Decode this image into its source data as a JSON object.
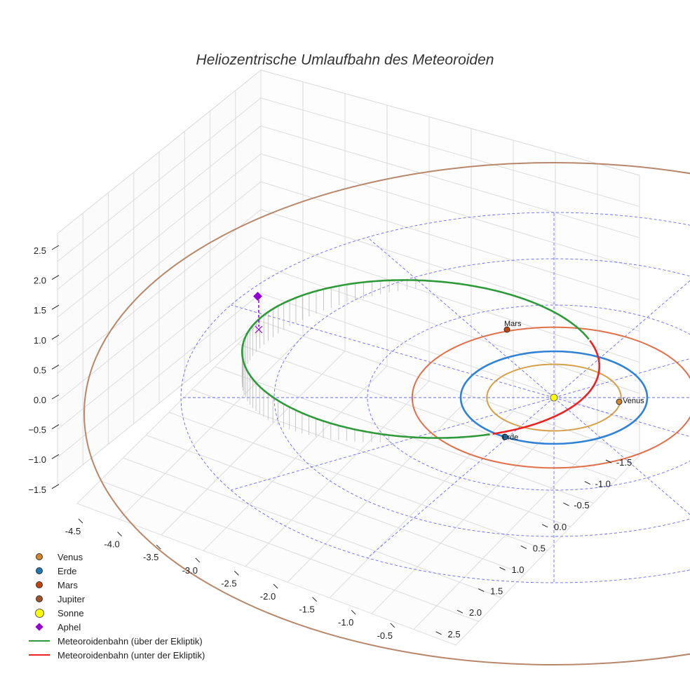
{
  "chart_data": {
    "type": "3d-line",
    "title": "Heliozentrische Umlaufbahn des Meteoroiden",
    "axes": {
      "x": {
        "ticks": [
          "-4.5",
          "-4.0",
          "-3.5",
          "-3.0",
          "-2.5",
          "-2.0",
          "-1.5",
          "-1.0",
          "-0.5"
        ]
      },
      "y": {
        "ticks": [
          "-1.5",
          "-1.0",
          "-0.5",
          "0.0",
          "0.5",
          "1.0",
          "1.5",
          "2.0",
          "2.5"
        ]
      },
      "z": {
        "ticks": [
          "2.5",
          "2.0",
          "1.5",
          "1.0",
          "0.5",
          "0.0",
          "−0.5",
          "−1.0",
          "−1.5"
        ]
      }
    },
    "bodies": [
      {
        "name": "Venus",
        "label": "Venus",
        "color": "#d4842a",
        "orbit_color": "#d4a04a",
        "orbit_radius_au": 0.72
      },
      {
        "name": "Erde",
        "label": "Erde",
        "color": "#1f77b4",
        "orbit_color": "#2f82d6",
        "orbit_radius_au": 1.0
      },
      {
        "name": "Mars",
        "label": "Mars",
        "color": "#c1440e",
        "orbit_color": "#e0704a",
        "orbit_radius_au": 1.52
      },
      {
        "name": "Jupiter",
        "label": "",
        "color": "#a0522d",
        "orbit_color": "#b8876a",
        "orbit_radius_au": 5.2
      },
      {
        "name": "Sonne",
        "label": "",
        "color": "#ffff00"
      }
    ],
    "markers": [
      {
        "name": "Aphel",
        "color": "#9400d3",
        "shape": "diamond"
      }
    ],
    "series": [
      {
        "name": "Meteoroidenbahn (über der Ekliptik)",
        "color": "#2e9a3a"
      },
      {
        "name": "Meteoroidenbahn (unter der Ekliptik)",
        "color": "#ee2222"
      }
    ],
    "ecliptic_grid_color": "#4444ee",
    "legend_position": "bottom-left"
  },
  "title": "Heliozentrische Umlaufbahn des Meteoroiden",
  "legend": [
    {
      "label": "Venus",
      "kind": "dot",
      "color": "#d4842a"
    },
    {
      "label": "Erde",
      "kind": "dot",
      "color": "#1f77b4"
    },
    {
      "label": "Mars",
      "kind": "dot",
      "color": "#c1440e"
    },
    {
      "label": "Jupiter",
      "kind": "dot",
      "color": "#a0522d"
    },
    {
      "label": "Sonne",
      "kind": "dot-lg",
      "color": "#ffff00"
    },
    {
      "label": "Aphel",
      "kind": "diamond",
      "color": "#9400d3"
    },
    {
      "label": "Meteoroidenbahn (über der Ekliptik)",
      "kind": "line",
      "color": "#2e9a3a"
    },
    {
      "label": "Meteoroidenbahn (unter der Ekliptik)",
      "kind": "line",
      "color": "#ee2222"
    }
  ]
}
